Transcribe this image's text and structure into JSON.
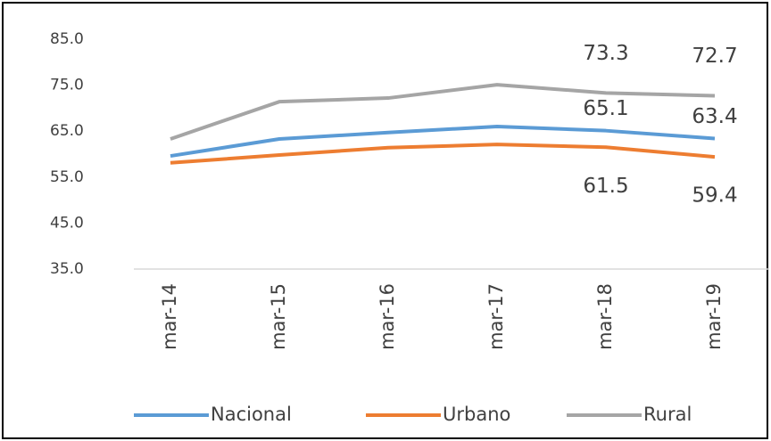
{
  "chart_data": {
    "type": "line",
    "categories": [
      "mar-14",
      "mar-15",
      "mar-16",
      "mar-17",
      "mar-18",
      "mar-19"
    ],
    "series": [
      {
        "name": "Nacional",
        "color": "#5b9bd5",
        "values": [
          59.6,
          63.3,
          64.7,
          66.0,
          65.1,
          63.4
        ],
        "value_labels": [
          null,
          null,
          null,
          null,
          "65.1",
          "63.4"
        ]
      },
      {
        "name": "Urbano",
        "color": "#ed7d31",
        "values": [
          58.1,
          59.8,
          61.4,
          62.1,
          61.5,
          59.4
        ],
        "value_labels": [
          null,
          null,
          null,
          null,
          "61.5",
          "59.4"
        ]
      },
      {
        "name": "Rural",
        "color": "#a5a5a5",
        "values": [
          63.3,
          71.4,
          72.2,
          75.1,
          73.3,
          72.7
        ],
        "value_labels": [
          null,
          null,
          null,
          null,
          "73.3",
          "72.7"
        ]
      }
    ],
    "ylim": [
      35,
      85
    ],
    "yticks": [
      {
        "value": 35,
        "label": "35.0"
      },
      {
        "value": 45,
        "label": "45.0"
      },
      {
        "value": 55,
        "label": "55.0"
      },
      {
        "value": 65,
        "label": "65.0"
      },
      {
        "value": 75,
        "label": "75.0"
      },
      {
        "value": 85,
        "label": "85.0"
      }
    ],
    "grid": false,
    "legend": "bottom"
  }
}
